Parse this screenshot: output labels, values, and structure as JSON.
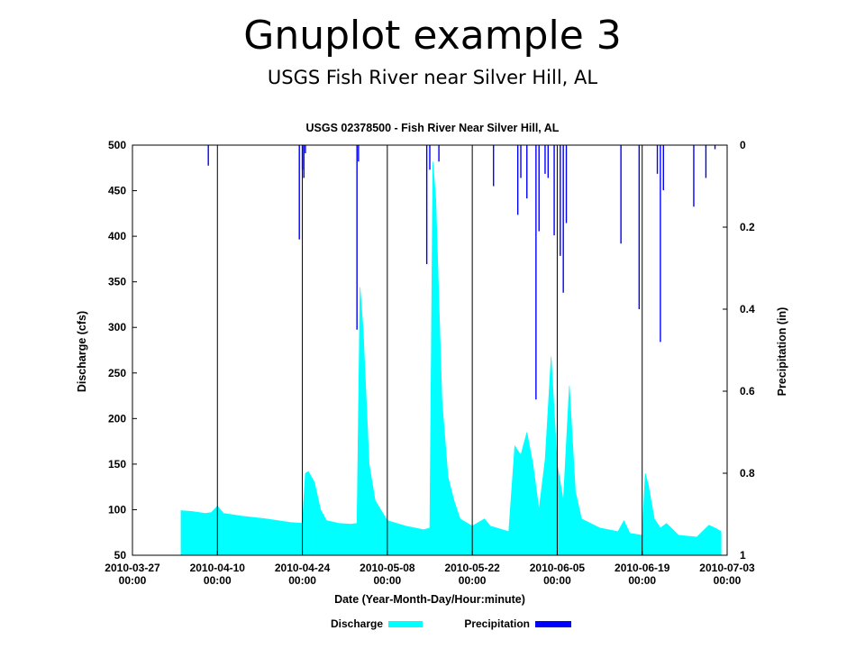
{
  "slide": {
    "title": "Gnuplot example 3",
    "subtitle": "USGS Fish River near Silver Hill, AL"
  },
  "chart_data": {
    "type": "area",
    "title": "USGS 02378500 - Fish River Near Silver Hill, AL",
    "xlabel": "Date (Year-Month-Day/Hour:minute)",
    "ylabel": "Discharge (cfs)",
    "y2label": "Precipitation (in)",
    "xlim": [
      "2010-03-27",
      "2010-07-03"
    ],
    "ylim": [
      50,
      500
    ],
    "y2lim": [
      0,
      1
    ],
    "y2_reversed": true,
    "x_ticks": [
      {
        "date": "2010-03-27",
        "line1": "2010-03-27",
        "line2": "00:00"
      },
      {
        "date": "2010-04-10",
        "line1": "2010-04-10",
        "line2": "00:00"
      },
      {
        "date": "2010-04-24",
        "line1": "2010-04-24",
        "line2": "00:00"
      },
      {
        "date": "2010-05-08",
        "line1": "2010-05-08",
        "line2": "00:00"
      },
      {
        "date": "2010-05-22",
        "line1": "2010-05-22",
        "line2": "00:00"
      },
      {
        "date": "2010-06-05",
        "line1": "2010-06-05",
        "line2": "00:00"
      },
      {
        "date": "2010-06-19",
        "line1": "2010-06-19",
        "line2": "00:00"
      },
      {
        "date": "2010-07-03",
        "line1": "2010-07-03",
        "line2": "00:00"
      }
    ],
    "y_ticks": [
      "50",
      "100",
      "150",
      "200",
      "250",
      "300",
      "350",
      "400",
      "450",
      "500"
    ],
    "y2_ticks": [
      "0",
      "0.2",
      "0.4",
      "0.6",
      "0.8",
      "1"
    ],
    "grid": "vertical lines at date ticks",
    "legend_position": "bottom",
    "series": [
      {
        "name": "Discharge",
        "style": "filled area",
        "color": "#00ffff",
        "points": [
          {
            "x": "2010-04-04",
            "y": 99
          },
          {
            "x": "2010-04-06",
            "y": 98
          },
          {
            "x": "2010-04-08",
            "y": 96
          },
          {
            "x": "2010-04-09",
            "y": 97
          },
          {
            "x": "2010-04-10",
            "y": 104
          },
          {
            "x": "2010-04-11",
            "y": 96
          },
          {
            "x": "2010-04-14",
            "y": 93
          },
          {
            "x": "2010-04-18",
            "y": 90
          },
          {
            "x": "2010-04-22",
            "y": 86
          },
          {
            "x": "2010-04-24",
            "y": 85
          },
          {
            "x": "2010-04-24 12:00",
            "y": 140
          },
          {
            "x": "2010-04-25",
            "y": 142
          },
          {
            "x": "2010-04-26",
            "y": 130
          },
          {
            "x": "2010-04-27",
            "y": 100
          },
          {
            "x": "2010-04-28",
            "y": 88
          },
          {
            "x": "2010-04-30",
            "y": 85
          },
          {
            "x": "2010-05-02",
            "y": 84
          },
          {
            "x": "2010-05-03",
            "y": 85
          },
          {
            "x": "2010-05-03 12:00",
            "y": 344
          },
          {
            "x": "2010-05-04",
            "y": 300
          },
          {
            "x": "2010-05-05",
            "y": 150
          },
          {
            "x": "2010-05-06",
            "y": 110
          },
          {
            "x": "2010-05-08",
            "y": 88
          },
          {
            "x": "2010-05-11",
            "y": 82
          },
          {
            "x": "2010-05-14",
            "y": 78
          },
          {
            "x": "2010-05-15",
            "y": 80
          },
          {
            "x": "2010-05-15 12:00",
            "y": 482
          },
          {
            "x": "2010-05-16",
            "y": 440
          },
          {
            "x": "2010-05-17",
            "y": 220
          },
          {
            "x": "2010-05-18",
            "y": 136
          },
          {
            "x": "2010-05-19",
            "y": 110
          },
          {
            "x": "2010-05-20",
            "y": 90
          },
          {
            "x": "2010-05-22",
            "y": 82
          },
          {
            "x": "2010-05-24",
            "y": 90
          },
          {
            "x": "2010-05-25",
            "y": 82
          },
          {
            "x": "2010-05-28",
            "y": 76
          },
          {
            "x": "2010-05-29",
            "y": 170
          },
          {
            "x": "2010-05-30",
            "y": 160
          },
          {
            "x": "2010-05-31",
            "y": 185
          },
          {
            "x": "2010-06-01",
            "y": 150
          },
          {
            "x": "2010-06-02",
            "y": 100
          },
          {
            "x": "2010-06-03",
            "y": 155
          },
          {
            "x": "2010-06-04",
            "y": 268
          },
          {
            "x": "2010-06-05",
            "y": 150
          },
          {
            "x": "2010-06-06",
            "y": 110
          },
          {
            "x": "2010-06-07",
            "y": 236
          },
          {
            "x": "2010-06-08",
            "y": 120
          },
          {
            "x": "2010-06-09",
            "y": 90
          },
          {
            "x": "2010-06-12",
            "y": 80
          },
          {
            "x": "2010-06-15",
            "y": 76
          },
          {
            "x": "2010-06-16",
            "y": 88
          },
          {
            "x": "2010-06-17",
            "y": 74
          },
          {
            "x": "2010-06-19",
            "y": 72
          },
          {
            "x": "2010-06-19 12:00",
            "y": 140
          },
          {
            "x": "2010-06-20",
            "y": 128
          },
          {
            "x": "2010-06-21",
            "y": 90
          },
          {
            "x": "2010-06-22",
            "y": 80
          },
          {
            "x": "2010-06-23",
            "y": 85
          },
          {
            "x": "2010-06-25",
            "y": 72
          },
          {
            "x": "2010-06-28",
            "y": 70
          },
          {
            "x": "2010-06-30",
            "y": 83
          },
          {
            "x": "2010-07-01",
            "y": 80
          },
          {
            "x": "2010-07-02",
            "y": 76
          }
        ]
      },
      {
        "name": "Precipitation",
        "style": "impulses from top",
        "color": "#0000ff",
        "points": [
          {
            "x": "2010-04-08 12:00",
            "y": 0.05
          },
          {
            "x": "2010-04-23 12:00",
            "y": 0.23
          },
          {
            "x": "2010-04-24",
            "y": 0.06
          },
          {
            "x": "2010-04-24 06:00",
            "y": 0.08
          },
          {
            "x": "2010-04-24 12:00",
            "y": 0.02
          },
          {
            "x": "2010-05-03",
            "y": 0.45
          },
          {
            "x": "2010-05-03 06:00",
            "y": 0.04
          },
          {
            "x": "2010-05-14 12:00",
            "y": 0.29
          },
          {
            "x": "2010-05-15",
            "y": 0.06
          },
          {
            "x": "2010-05-16 12:00",
            "y": 0.04
          },
          {
            "x": "2010-05-25 12:00",
            "y": 0.1
          },
          {
            "x": "2010-05-29 12:00",
            "y": 0.17
          },
          {
            "x": "2010-05-30",
            "y": 0.08
          },
          {
            "x": "2010-05-31",
            "y": 0.13
          },
          {
            "x": "2010-06-01 12:00",
            "y": 0.62
          },
          {
            "x": "2010-06-02",
            "y": 0.21
          },
          {
            "x": "2010-06-03",
            "y": 0.07
          },
          {
            "x": "2010-06-03 12:00",
            "y": 0.08
          },
          {
            "x": "2010-06-04 12:00",
            "y": 0.22
          },
          {
            "x": "2010-06-05 12:00",
            "y": 0.27
          },
          {
            "x": "2010-06-06",
            "y": 0.36
          },
          {
            "x": "2010-06-06 12:00",
            "y": 0.19
          },
          {
            "x": "2010-06-15 12:00",
            "y": 0.24
          },
          {
            "x": "2010-06-18 12:00",
            "y": 0.4
          },
          {
            "x": "2010-06-21 12:00",
            "y": 0.07
          },
          {
            "x": "2010-06-22",
            "y": 0.48
          },
          {
            "x": "2010-06-22 12:00",
            "y": 0.11
          },
          {
            "x": "2010-06-27 12:00",
            "y": 0.15
          },
          {
            "x": "2010-06-29 12:00",
            "y": 0.08
          },
          {
            "x": "2010-07-01",
            "y": 0.01
          }
        ]
      }
    ]
  }
}
